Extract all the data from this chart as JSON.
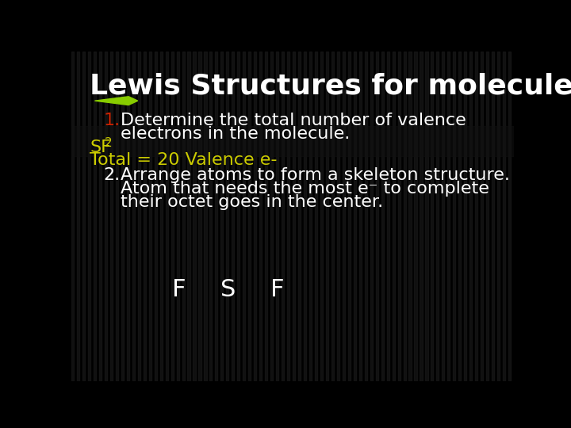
{
  "title": "Lewis Structures for molecules",
  "title_color": "#ffffff",
  "title_fontsize": 26,
  "background_color": "#000000",
  "item1_number": "1.",
  "item1_number_color": "#cc2200",
  "item1_text_line1": "Determine the total number of valence",
  "item1_text_line2": "electrons in the molecule.",
  "item1_color": "#ffffff",
  "item1_fontsize": 16,
  "sf2_main": "SF",
  "sf2_sub": "2",
  "sf2_color": "#cccc00",
  "sf2_fontsize": 16,
  "total_text": "Total = 20 Valence e-",
  "total_color": "#cccc00",
  "total_fontsize": 16,
  "item2_number": "2.",
  "item2_text_line1": "Arrange atoms to form a skeleton structure.",
  "item2_text_line2": "Atom that needs the most e⁻ to complete",
  "item2_text_line3": "their octet goes in the center.",
  "item2_color": "#ffffff",
  "item2_fontsize": 16,
  "f_label": "F",
  "s_label": "S",
  "f2_label": "F",
  "fsf_color": "#ffffff",
  "fsf_fontsize": 22,
  "arrow_color": "#88cc00",
  "stripe_dark": "#1c1c1c",
  "stripe_light": "#000000"
}
